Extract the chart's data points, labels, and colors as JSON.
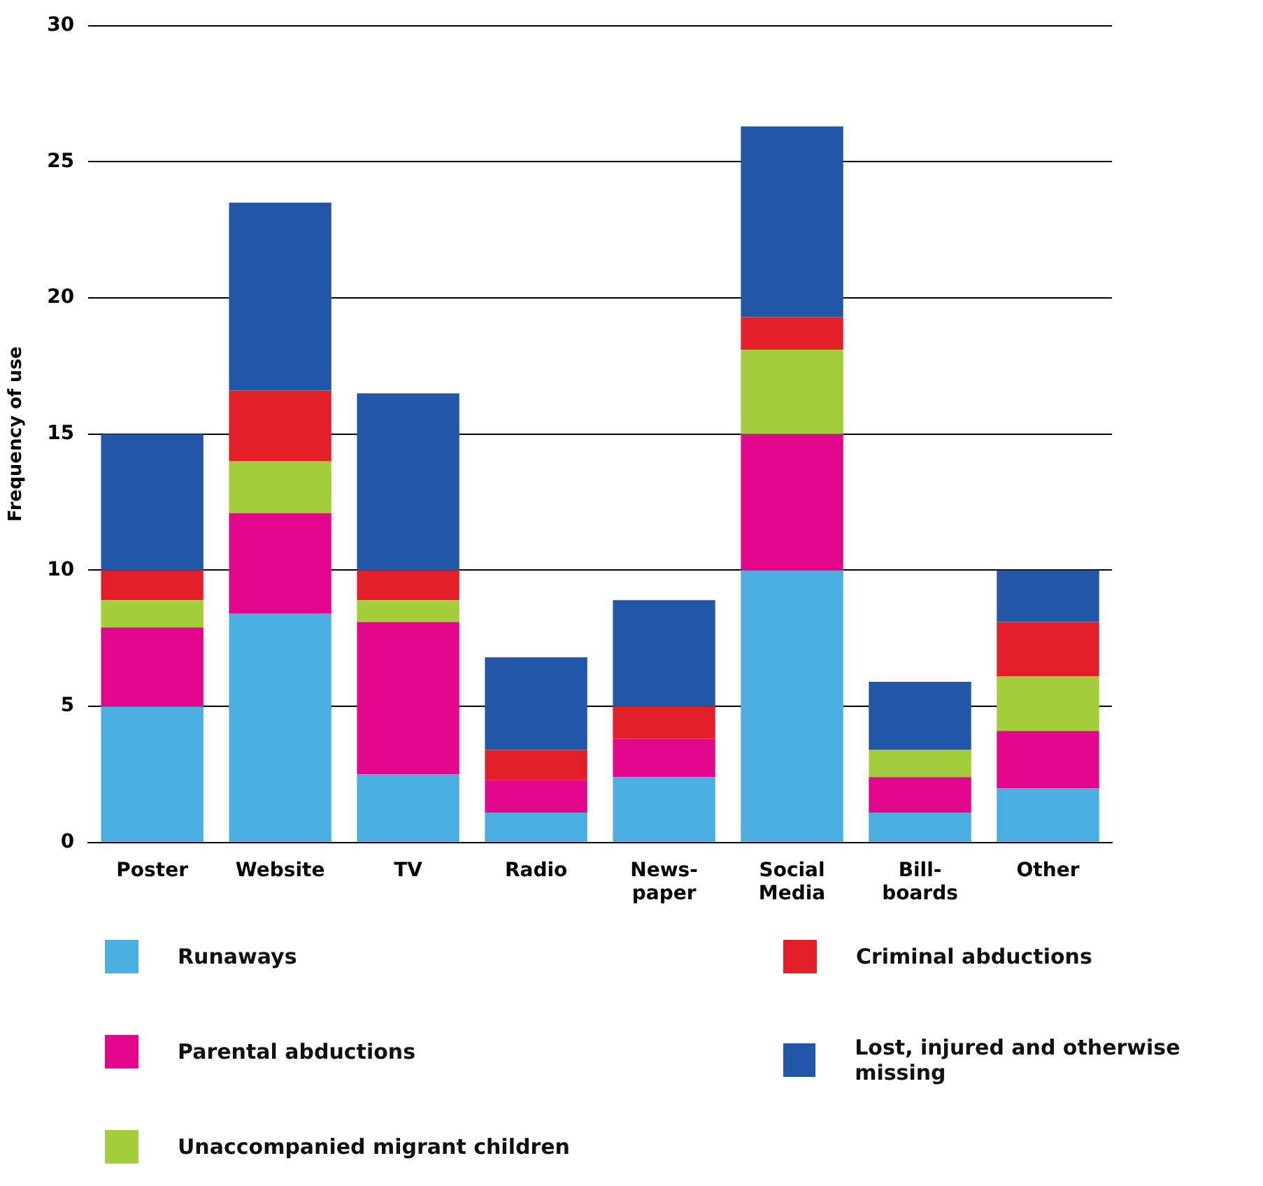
{
  "chart_data": {
    "type": "bar",
    "stacked": true,
    "ylabel": "Frequency of use",
    "categories": [
      "Poster",
      "Website",
      "TV",
      "Radio",
      "News-\npaper",
      "Social\nMedia",
      "Bill-\nboards",
      "Other"
    ],
    "series": [
      {
        "name": "Runaways",
        "color": "#4aaee0",
        "values": [
          5,
          8.4,
          2.5,
          1.1,
          2.4,
          10,
          1.1,
          2
        ]
      },
      {
        "name": "Parental abductions",
        "color": "#e2068c",
        "values": [
          2.9,
          3.7,
          5.6,
          1.2,
          1.4,
          5,
          1.3,
          2.1
        ]
      },
      {
        "name": "Unaccompanied migrant children",
        "color": "#a3cd3a",
        "values": [
          1,
          1.9,
          0.8,
          0,
          0,
          3.1,
          1,
          2
        ]
      },
      {
        "name": "Criminal abductions",
        "color": "#e3202a",
        "values": [
          1.1,
          2.6,
          1.1,
          1.1,
          1.2,
          1.2,
          0,
          2
        ]
      },
      {
        "name": "Lost, injured and otherwise missing",
        "color": "#2257a8",
        "values": [
          5,
          6.9,
          6.5,
          3.4,
          3.9,
          7,
          2.5,
          1.9
        ]
      }
    ],
    "ylim": [
      0,
      30
    ],
    "yticks": [
      0,
      5,
      10,
      15,
      20,
      25,
      30
    ],
    "grid": "y",
    "legend": "bottom"
  }
}
